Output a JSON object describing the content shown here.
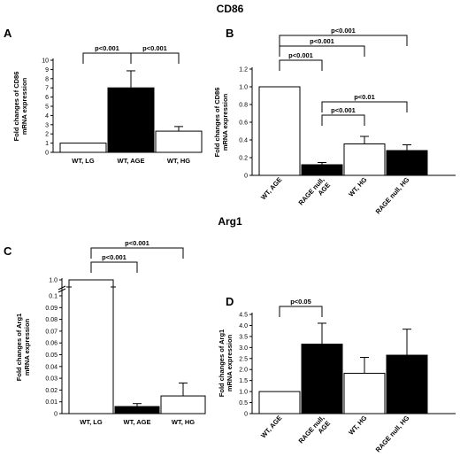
{
  "figure": {
    "title_top": "CD86",
    "title_bottom": "Arg1"
  },
  "chart_data": [
    {
      "panel": "A",
      "type": "bar",
      "categories": [
        "WT, LG",
        "WT, AGE",
        "WT, HG"
      ],
      "values": [
        1.0,
        7.0,
        2.3
      ],
      "errors": [
        0,
        1.85,
        0.5
      ],
      "fills": [
        "#ffffff",
        "#000000",
        "#ffffff"
      ],
      "ylabel": "Fold changes of CD86\nmRNA expression",
      "ylim": [
        0,
        10
      ],
      "yticks": [
        0,
        1,
        2,
        3,
        4,
        5,
        6,
        7,
        8,
        9,
        10
      ],
      "tick_labels": [
        "0",
        "1",
        "2",
        "3",
        "4",
        "5",
        "6",
        "7",
        "8",
        "9",
        "10"
      ],
      "brackets": [
        {
          "from": 0,
          "to": 1,
          "label": "p<0.001"
        },
        {
          "from": 1,
          "to": 2,
          "label": "p<0.001"
        }
      ]
    },
    {
      "panel": "B",
      "type": "bar",
      "categories": [
        "WT, AGE",
        "RAGE null,\nAGE",
        "WT, HG",
        "RAGE null, HG"
      ],
      "values": [
        1.0,
        0.12,
        0.355,
        0.28
      ],
      "errors": [
        0,
        0.025,
        0.085,
        0.065
      ],
      "fills": [
        "#ffffff",
        "#000000",
        "#ffffff",
        "#000000"
      ],
      "ylabel": "Fold changes of CD86\nmRNA expression",
      "ylim": [
        0,
        1.2
      ],
      "yticks": [
        0,
        0.2,
        0.4,
        0.6,
        0.8,
        1.0,
        1.2
      ],
      "tick_labels": [
        "0",
        "0.2",
        "0.4",
        "0.6",
        "0.8",
        "1.0",
        "1.2"
      ],
      "brackets": [
        {
          "from": 0,
          "to": 3,
          "label": "p<0.001"
        },
        {
          "from": 0,
          "to": 2,
          "label": "p<0.001"
        },
        {
          "from": 0,
          "to": 1,
          "label": "p<0.001"
        },
        {
          "from": 1,
          "to": 3,
          "label": "p<0.01"
        },
        {
          "from": 1,
          "to": 2,
          "label": "p<0.001"
        }
      ]
    },
    {
      "panel": "C",
      "type": "bar",
      "categories": [
        "WT, LG",
        "WT, AGE",
        "WT, HG"
      ],
      "values": [
        1.0,
        0.006,
        0.015
      ],
      "errors": [
        0,
        0.0025,
        0.011
      ],
      "fills": [
        "#ffffff",
        "#000000",
        "#ffffff"
      ],
      "ylabel": "Fold changes of Arg1\nmRNA expression",
      "ylim": [
        0,
        1.0
      ],
      "axis_break": [
        0.1,
        1.0
      ],
      "yticks": [
        0,
        0.01,
        0.02,
        0.03,
        0.04,
        0.05,
        0.06,
        0.07,
        0.08,
        0.09,
        0.1,
        1.0
      ],
      "tick_labels": [
        "0",
        "0.01",
        "0.02",
        "0.03",
        "0.04",
        "0.05",
        "0.06",
        "0.07",
        "0.08",
        "0.09",
        "0.1",
        "1.0"
      ],
      "brackets": [
        {
          "from": 0,
          "to": 2,
          "label": "p<0.001"
        },
        {
          "from": 0,
          "to": 1,
          "label": "p<0.001"
        }
      ]
    },
    {
      "panel": "D",
      "type": "bar",
      "categories": [
        "WT, AGE",
        "RAGE null,\nAGE",
        "WT, HG",
        "RAGE null, HG"
      ],
      "values": [
        1.0,
        3.15,
        1.83,
        2.65
      ],
      "errors": [
        0,
        0.95,
        0.72,
        1.18
      ],
      "fills": [
        "#ffffff",
        "#000000",
        "#ffffff",
        "#000000"
      ],
      "ylabel": "Fold changes of Arg1\nmRNA expression",
      "ylim": [
        0,
        4.5
      ],
      "yticks": [
        0,
        0.5,
        1.0,
        1.5,
        2.0,
        2.5,
        3.0,
        3.5,
        4.0,
        4.5
      ],
      "tick_labels": [
        "0",
        "0.5",
        "1.0",
        "1.5",
        "2.0",
        "2.5",
        "3.0",
        "3.5",
        "4.0",
        "4.5"
      ],
      "brackets": [
        {
          "from": 0,
          "to": 1,
          "label": "p<0.05"
        }
      ]
    }
  ]
}
